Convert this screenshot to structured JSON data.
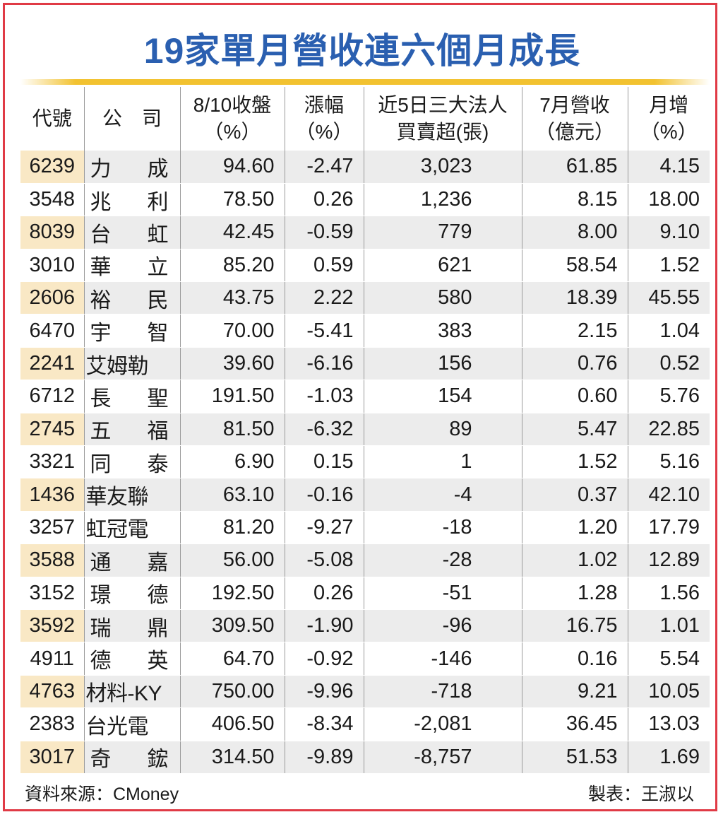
{
  "title": "19家單月營收連六個月成長",
  "headers": [
    "代號",
    "公　司",
    "8/10收盤\n（%）",
    "漲幅\n（%）",
    "近5日三大法人\n買賣超(張)",
    "7月營收\n（億元）",
    "月增\n（%）"
  ],
  "rows": [
    [
      "6239",
      "力　成",
      "94.60",
      "-2.47",
      "3,023",
      "61.85",
      "4.15"
    ],
    [
      "3548",
      "兆　利",
      "78.50",
      "0.26",
      "1,236",
      "8.15",
      "18.00"
    ],
    [
      "8039",
      "台　虹",
      "42.45",
      "-0.59",
      "779",
      "8.00",
      "9.10"
    ],
    [
      "3010",
      "華　立",
      "85.20",
      "0.59",
      "621",
      "58.54",
      "1.52"
    ],
    [
      "2606",
      "裕　民",
      "43.75",
      "2.22",
      "580",
      "18.39",
      "45.55"
    ],
    [
      "6470",
      "宇　智",
      "70.00",
      "-5.41",
      "383",
      "2.15",
      "1.04"
    ],
    [
      "2241",
      "艾姆勒",
      "39.60",
      "-6.16",
      "156",
      "0.76",
      "0.52"
    ],
    [
      "6712",
      "長　聖",
      "191.50",
      "-1.03",
      "154",
      "0.60",
      "5.76"
    ],
    [
      "2745",
      "五　福",
      "81.50",
      "-6.32",
      "89",
      "5.47",
      "22.85"
    ],
    [
      "3321",
      "同　泰",
      "6.90",
      "0.15",
      "1",
      "1.52",
      "5.16"
    ],
    [
      "1436",
      "華友聯",
      "63.10",
      "-0.16",
      "-4",
      "0.37",
      "42.10"
    ],
    [
      "3257",
      "虹冠電",
      "81.20",
      "-9.27",
      "-18",
      "1.20",
      "17.79"
    ],
    [
      "3588",
      "通　嘉",
      "56.00",
      "-5.08",
      "-28",
      "1.02",
      "12.89"
    ],
    [
      "3152",
      "璟　德",
      "192.50",
      "0.26",
      "-51",
      "1.28",
      "1.56"
    ],
    [
      "3592",
      "瑞　鼎",
      "309.50",
      "-1.90",
      "-96",
      "16.75",
      "1.01"
    ],
    [
      "4911",
      "德　英",
      "64.70",
      "-0.92",
      "-146",
      "0.16",
      "5.54"
    ],
    [
      "4763",
      "材料-KY",
      "750.00",
      "-9.96",
      "-718",
      "9.21",
      "10.05"
    ],
    [
      "2383",
      "台光電",
      "406.50",
      "-8.34",
      "-2,081",
      "36.45",
      "13.03"
    ],
    [
      "3017",
      "奇　鋐",
      "314.50",
      "-9.89",
      "-8,757",
      "51.53",
      "1.69"
    ]
  ],
  "footer": {
    "source": "資料來源：CMoney",
    "maker": "製表：王淑以"
  },
  "colors": {
    "title": "#2a5fb0",
    "border": "#e03a45",
    "gold_line": "#f2c230",
    "code_highlight": "#f9e8c5",
    "stripe": "#ececec"
  }
}
